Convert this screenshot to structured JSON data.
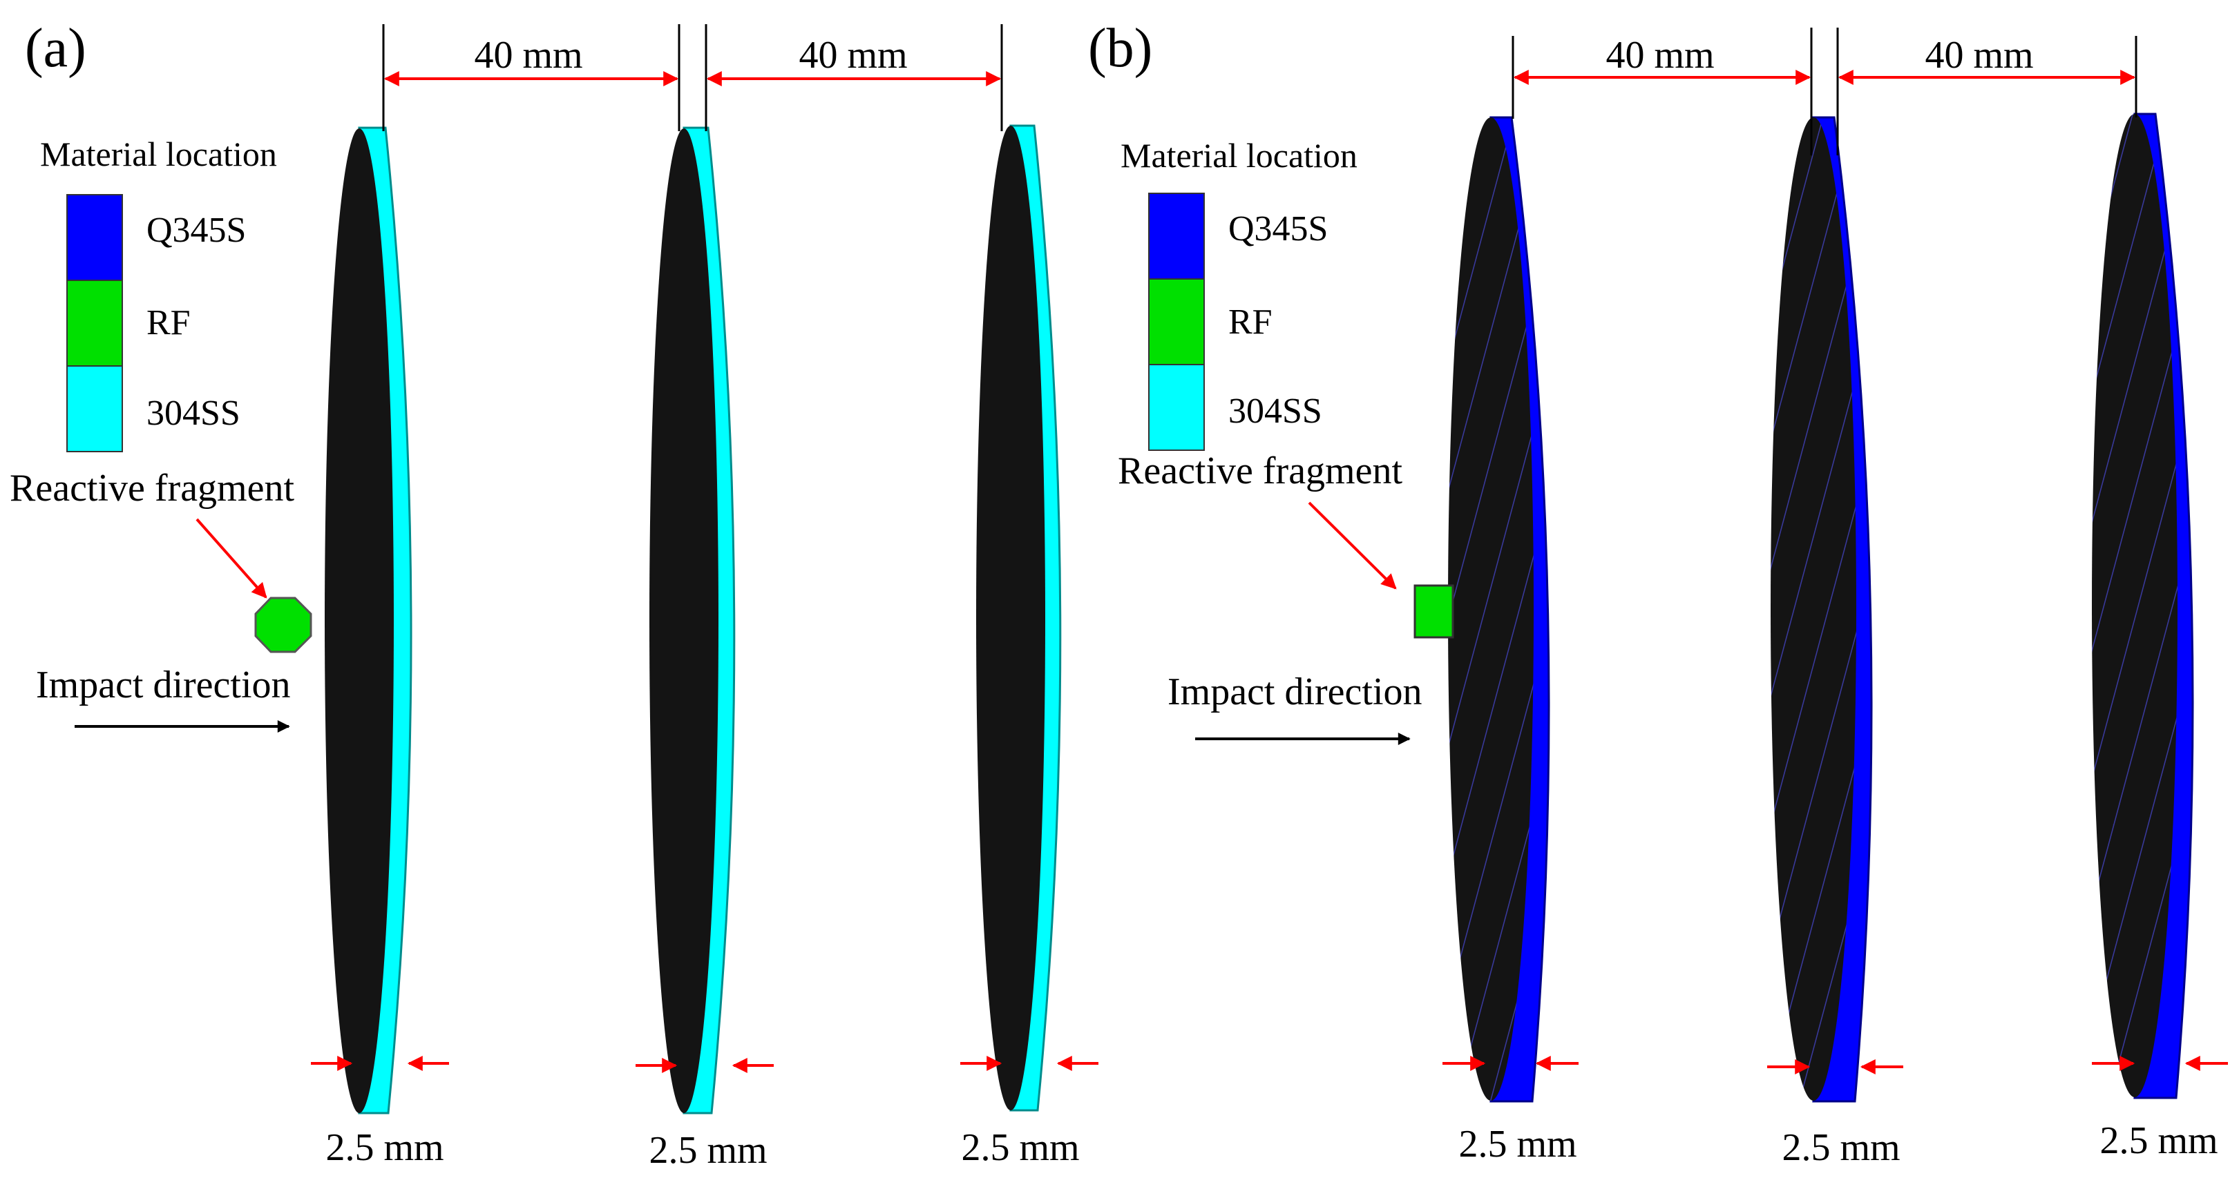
{
  "colors": {
    "Q345S": "#0000ff",
    "RF": "#00e000",
    "304SS": "#00ffff",
    "plate_face": "#141414",
    "arrow_red": "#ff0000",
    "arrow_black": "#000000"
  },
  "panels": [
    {
      "label": "(a)",
      "legend_title": "Material location",
      "legend_items": [
        "Q345S",
        "RF",
        "304SS"
      ],
      "fragment_label": "Reactive fragment",
      "impact_label": "Impact direction",
      "spacing_labels": [
        "40 mm",
        "40 mm"
      ],
      "thickness_labels": [
        "2.5 mm",
        "2.5 mm",
        "2.5 mm"
      ],
      "plate_material": "304SS",
      "fragment_shape": "octagon",
      "hatched": false
    },
    {
      "label": "(b)",
      "legend_title": "Material location",
      "legend_items": [
        "Q345S",
        "RF",
        "304SS"
      ],
      "fragment_label": "Reactive fragment",
      "impact_label": "Impact direction",
      "spacing_labels": [
        "40 mm",
        "40 mm"
      ],
      "thickness_labels": [
        "2.5 mm",
        "2.5 mm",
        "2.5 mm"
      ],
      "plate_material": "Q345S",
      "fragment_shape": "rectangle",
      "hatched": true
    }
  ]
}
